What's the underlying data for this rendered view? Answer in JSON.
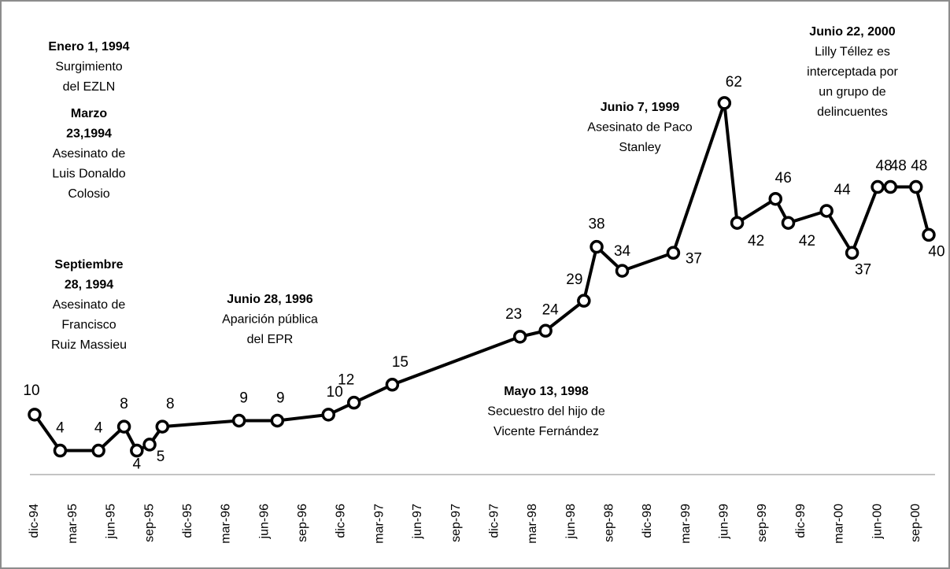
{
  "chart_data": {
    "type": "line",
    "x": [
      "1994-12",
      "1995-02",
      "1995-05",
      "1995-07",
      "1995-08",
      "1995-09",
      "1995-10",
      "1996-04",
      "1996-07",
      "1996-11",
      "1997-01",
      "1997-04",
      "1998-02",
      "1998-04",
      "1998-07",
      "1998-08",
      "1998-10",
      "1999-02",
      "1999-06",
      "1999-07",
      "1999-10",
      "1999-11",
      "2000-02",
      "2000-04",
      "2000-06",
      "2000-07",
      "2000-09",
      "2000-10"
    ],
    "series": [
      {
        "color": "#000000",
        "values": [
          10,
          4,
          4,
          8,
          4,
          5,
          8,
          9,
          9,
          10,
          12,
          15,
          23,
          24,
          29,
          38,
          34,
          37,
          62,
          42,
          46,
          42,
          44,
          37,
          48,
          48,
          48,
          40
        ]
      }
    ],
    "xlim": [
      "1994-12",
      "2000-10"
    ],
    "xticks": [
      {
        "value": "1994-12",
        "label": "dic-94"
      },
      {
        "value": "1995-03",
        "label": "mar-95"
      },
      {
        "value": "1995-06",
        "label": "jun-95"
      },
      {
        "value": "1995-09",
        "label": "sep-95"
      },
      {
        "value": "1995-12",
        "label": "dic-95"
      },
      {
        "value": "1996-03",
        "label": "mar-96"
      },
      {
        "value": "1996-06",
        "label": "jun-96"
      },
      {
        "value": "1996-09",
        "label": "sep-96"
      },
      {
        "value": "1996-12",
        "label": "dic-96"
      },
      {
        "value": "1997-03",
        "label": "mar-97"
      },
      {
        "value": "1997-06",
        "label": "jun-97"
      },
      {
        "value": "1997-09",
        "label": "sep-97"
      },
      {
        "value": "1997-12",
        "label": "dic-97"
      },
      {
        "value": "1998-03",
        "label": "mar-98"
      },
      {
        "value": "1998-06",
        "label": "jun-98"
      },
      {
        "value": "1998-09",
        "label": "sep-98"
      },
      {
        "value": "1998-12",
        "label": "dic-98"
      },
      {
        "value": "1999-03",
        "label": "mar-99"
      },
      {
        "value": "1999-06",
        "label": "jun-99"
      },
      {
        "value": "1999-09",
        "label": "sep-99"
      },
      {
        "value": "1999-12",
        "label": "dic-99"
      },
      {
        "value": "2000-03",
        "label": "mar-00"
      },
      {
        "value": "2000-06",
        "label": "jun-00"
      },
      {
        "value": "2000-09",
        "label": "sep-00"
      }
    ],
    "ylim": [
      0,
      70
    ],
    "annotations": [
      {
        "title": [
          "Enero 1, 1994"
        ],
        "lines": [
          "Surgimiento",
          "del EZLN"
        ]
      },
      {
        "title": [
          "Marzo",
          "23,1994"
        ],
        "lines": [
          "Asesinato de",
          "Luis Donaldo",
          "Colosio"
        ]
      },
      {
        "title": [
          "Septiembre",
          "28, 1994"
        ],
        "lines": [
          "Asesinato de",
          "Francisco",
          "Ruiz Massieu"
        ]
      },
      {
        "title": [
          "Junio 28, 1996"
        ],
        "lines": [
          "Aparición pública",
          "del EPR"
        ]
      },
      {
        "title": [
          "Mayo 13, 1998"
        ],
        "lines": [
          "Secuestro del hijo de",
          "Vicente Fernández"
        ]
      },
      {
        "title": [
          "Junio 7, 1999"
        ],
        "lines": [
          "Asesinato de Paco",
          "Stanley"
        ]
      },
      {
        "title": [
          "Junio 22, 2000"
        ],
        "lines": [
          "Lilly Téllez es",
          "interceptada por",
          "un grupo de",
          "delincuentes"
        ]
      }
    ]
  }
}
